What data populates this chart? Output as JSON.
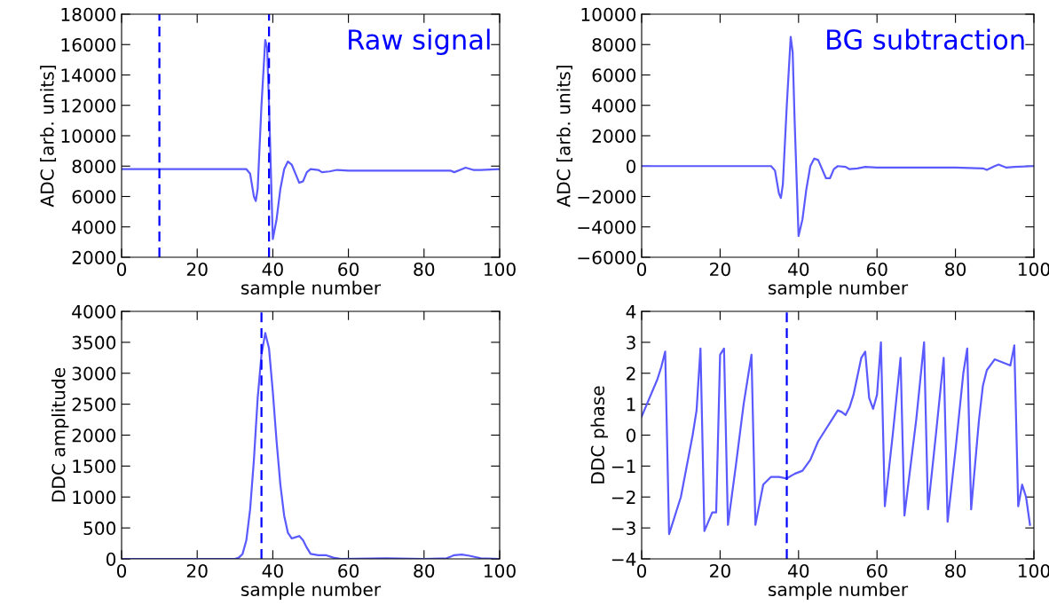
{
  "chart_data": [
    {
      "type": "line",
      "xlabel": "sample number",
      "ylabel": "ADC [arb. units]",
      "annotations": [
        "Raw signal"
      ],
      "xlim": [
        0,
        100
      ],
      "ylim": [
        2000,
        18000
      ],
      "xticks": [
        0,
        20,
        40,
        60,
        80,
        100
      ],
      "yticks": [
        2000,
        4000,
        6000,
        8000,
        10000,
        12000,
        14000,
        16000,
        18000
      ],
      "series": [
        {
          "color": "#5a5aff",
          "x": [
            0,
            33,
            34,
            35,
            35.5,
            36,
            37,
            38,
            38.5,
            39,
            40,
            41,
            42,
            43,
            44,
            45,
            46,
            47,
            48,
            49,
            50,
            52,
            53,
            55,
            57,
            60,
            70,
            80,
            87,
            88,
            90,
            91,
            93,
            95,
            100
          ],
          "values": [
            7800,
            7800,
            7500,
            6000,
            5700,
            6500,
            12000,
            16300,
            15800,
            12000,
            3200,
            4500,
            6500,
            7800,
            8300,
            8100,
            7500,
            6900,
            7000,
            7600,
            7800,
            7750,
            7600,
            7650,
            7750,
            7700,
            7700,
            7700,
            7700,
            7600,
            7800,
            7900,
            7750,
            7750,
            7800
          ]
        }
      ],
      "ref_lines": [
        {
          "axis": "x",
          "value": 10,
          "color": "#0000ff",
          "line_style": "dashed"
        },
        {
          "axis": "x",
          "value": 39,
          "color": "#0000ff",
          "line_style": "dashed"
        }
      ]
    },
    {
      "type": "line",
      "xlabel": "sample number",
      "ylabel": "ADC [arb. units]",
      "annotations": [
        "BG subtraction"
      ],
      "xlim": [
        0,
        100
      ],
      "ylim": [
        -6000,
        10000
      ],
      "xticks": [
        0,
        20,
        40,
        60,
        80,
        100
      ],
      "yticks": [
        {
          "value": -6000,
          "label": "−6000"
        },
        {
          "value": -4000,
          "label": "−4000"
        },
        {
          "value": -2000,
          "label": "−2000"
        },
        0,
        2000,
        4000,
        6000,
        8000,
        10000
      ],
      "series": [
        {
          "color": "#5a5aff",
          "x": [
            0,
            33,
            34,
            35,
            35.5,
            36,
            37,
            38,
            38.5,
            39,
            40,
            41,
            42,
            43,
            44,
            45,
            46,
            47,
            48,
            49,
            50,
            52,
            53,
            55,
            57,
            60,
            80,
            87,
            88,
            90,
            91,
            93,
            95,
            100
          ],
          "values": [
            0,
            0,
            -300,
            -1800,
            -2100,
            -1200,
            4000,
            8500,
            7500,
            3000,
            -4600,
            -3500,
            -1500,
            0,
            500,
            400,
            -200,
            -800,
            -800,
            -200,
            0,
            -50,
            -200,
            -150,
            -50,
            -100,
            -100,
            -150,
            -250,
            0,
            100,
            -100,
            -50,
            0
          ]
        }
      ]
    },
    {
      "type": "line",
      "xlabel": "sample number",
      "ylabel": "DDC amplitude",
      "xlim": [
        0,
        100
      ],
      "ylim": [
        0,
        4000
      ],
      "xticks": [
        0,
        20,
        40,
        60,
        80,
        100
      ],
      "yticks": [
        0,
        500,
        1000,
        1500,
        2000,
        2500,
        3000,
        3500,
        4000
      ],
      "series": [
        {
          "color": "#5a5aff",
          "x": [
            0,
            30,
            31,
            32,
            33,
            34,
            35,
            36,
            37,
            38,
            39,
            40,
            41,
            42,
            43,
            44,
            45,
            46,
            47,
            48,
            49,
            50,
            52,
            54,
            56,
            58,
            70,
            80,
            86,
            88,
            90,
            92,
            95,
            100
          ],
          "values": [
            0,
            0,
            20,
            80,
            300,
            800,
            1600,
            2600,
            3300,
            3650,
            3400,
            2700,
            1900,
            1200,
            700,
            420,
            330,
            350,
            370,
            300,
            180,
            80,
            60,
            60,
            20,
            0,
            10,
            0,
            10,
            60,
            70,
            50,
            10,
            0
          ]
        }
      ],
      "ref_lines": [
        {
          "axis": "x",
          "value": 37,
          "color": "#0000ff",
          "line_style": "dashed"
        }
      ]
    },
    {
      "type": "line",
      "xlabel": "sample number",
      "ylabel": "DDC phase",
      "xlim": [
        0,
        100
      ],
      "ylim": [
        -4,
        4
      ],
      "xticks": [
        0,
        20,
        40,
        60,
        80,
        100
      ],
      "yticks": [
        {
          "value": -4,
          "label": "−4"
        },
        {
          "value": -3,
          "label": "−3"
        },
        {
          "value": -2,
          "label": "−2"
        },
        {
          "value": -1,
          "label": "−1"
        },
        0,
        1,
        2,
        3,
        4
      ],
      "series": [
        {
          "color": "#5a5aff",
          "x": [
            0,
            2,
            4,
            5,
            6,
            7,
            10,
            13,
            14,
            15,
            16,
            18,
            19,
            20,
            21,
            22,
            24,
            26,
            28,
            29,
            31,
            33,
            35,
            37,
            39,
            41,
            43,
            45,
            47,
            49,
            50,
            51,
            52,
            53,
            54,
            56,
            57,
            58,
            59,
            60,
            61,
            62,
            64,
            66,
            67,
            70,
            72,
            73,
            75,
            77,
            78,
            80,
            82,
            83,
            84,
            86,
            87,
            88,
            90,
            92,
            94,
            95,
            96,
            97,
            98,
            99
          ],
          "values": [
            0.6,
            1.2,
            1.8,
            2.2,
            2.7,
            -3.2,
            -2.0,
            0.0,
            0.8,
            2.8,
            -3.1,
            -2.5,
            -2.5,
            2.6,
            2.8,
            -2.9,
            -1.0,
            1.0,
            2.6,
            -2.9,
            -1.6,
            -1.35,
            -1.35,
            -1.4,
            -1.25,
            -1.15,
            -0.8,
            -0.2,
            0.2,
            0.6,
            0.8,
            0.75,
            0.65,
            0.9,
            1.3,
            2.5,
            2.7,
            1.2,
            0.85,
            1.3,
            3.0,
            -2.3,
            0.0,
            2.5,
            -2.6,
            0.5,
            3.0,
            -2.4,
            0.0,
            2.5,
            -2.8,
            -0.5,
            2.0,
            2.8,
            -2.4,
            0.5,
            1.6,
            2.1,
            2.45,
            2.35,
            2.25,
            2.9,
            -2.3,
            -1.6,
            -2.0,
            -2.9
          ]
        }
      ],
      "ref_lines": [
        {
          "axis": "x",
          "value": 37,
          "color": "#0000ff",
          "line_style": "dashed"
        }
      ]
    }
  ]
}
